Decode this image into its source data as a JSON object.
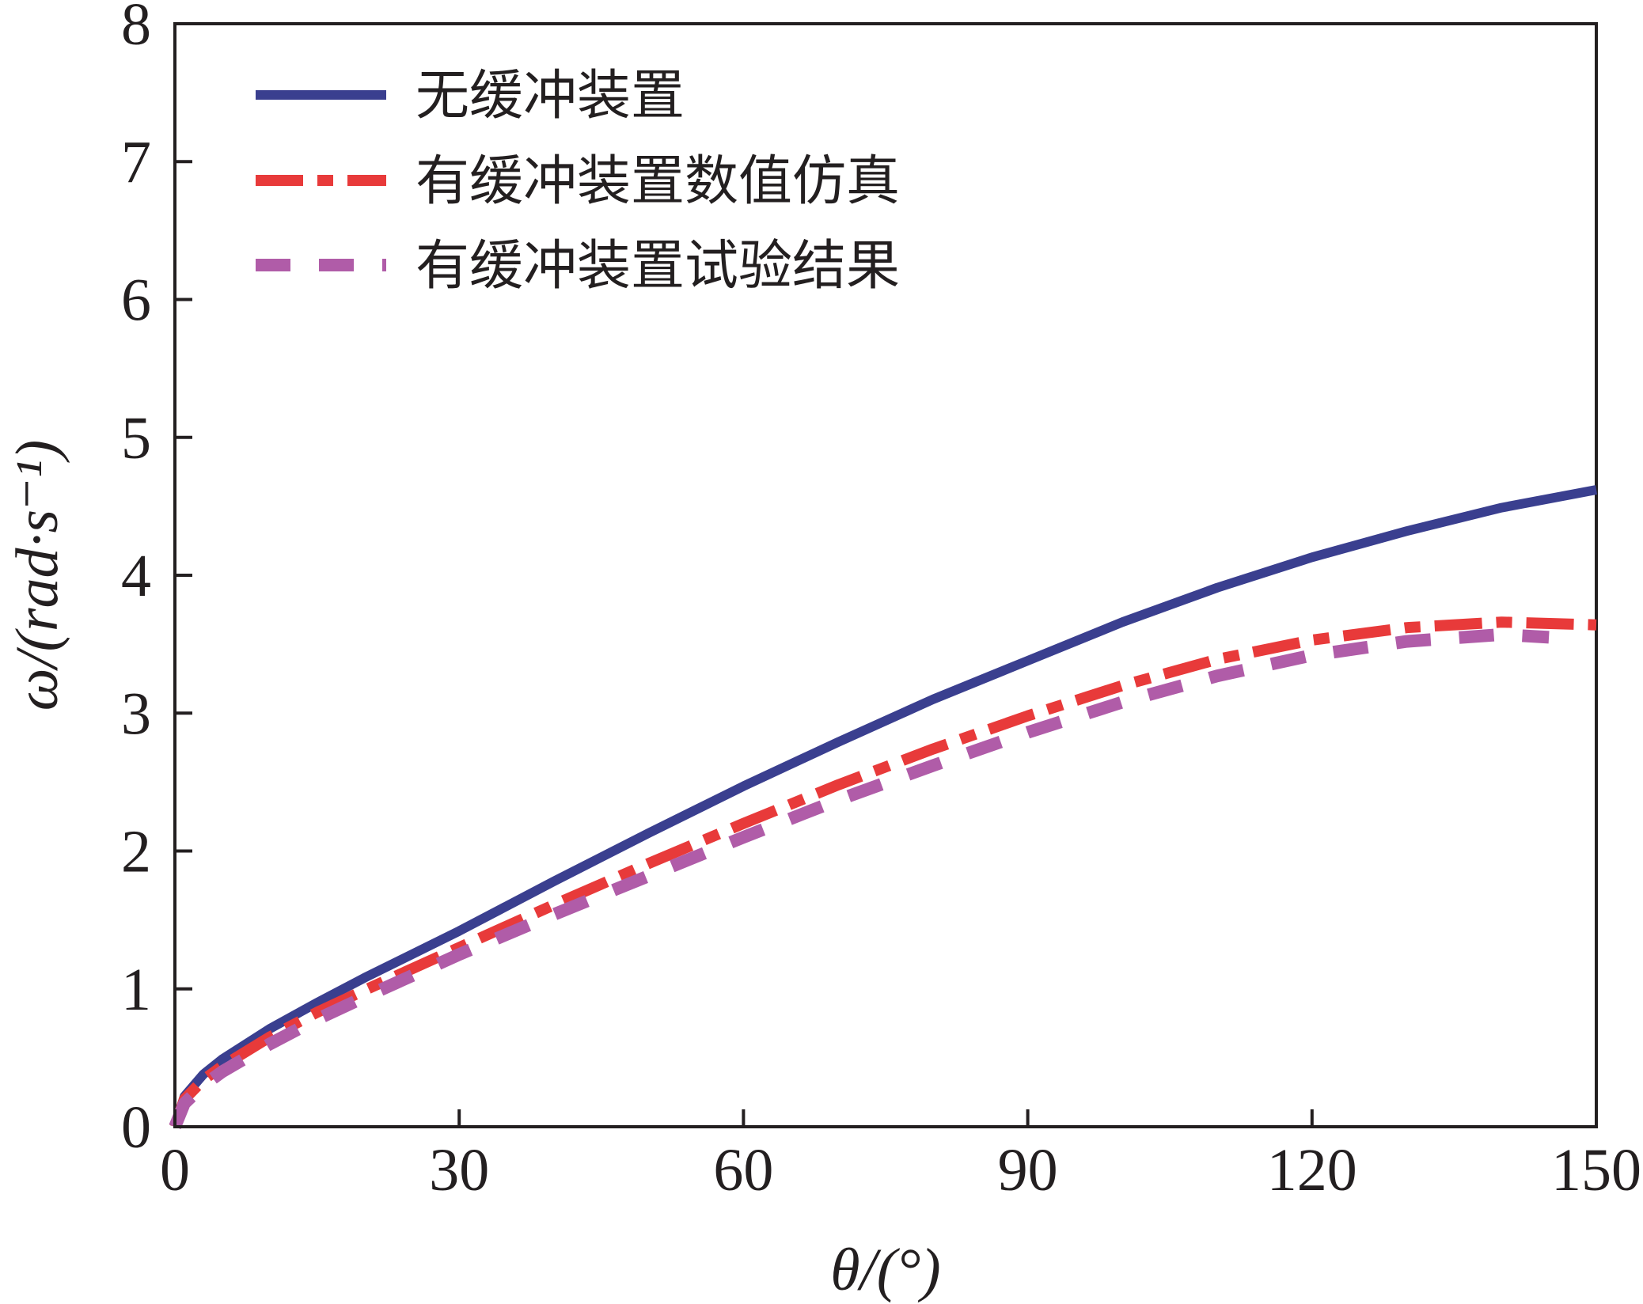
{
  "chart_data": {
    "type": "line",
    "xlabel": "θ/(°)",
    "ylabel": "ω/(rad·s⁻¹)",
    "xlim": [
      0,
      150
    ],
    "ylim": [
      0,
      8
    ],
    "xticks": [
      0,
      30,
      60,
      90,
      120,
      150
    ],
    "yticks": [
      0,
      1,
      2,
      3,
      4,
      5,
      6,
      7,
      8
    ],
    "grid": false,
    "legend_position": "top-left",
    "series": [
      {
        "name": "无缓冲装置",
        "color": "#3a3f8f",
        "line_style": "solid",
        "x": [
          0,
          1,
          3,
          5,
          10,
          15,
          20,
          30,
          40,
          50,
          60,
          70,
          80,
          90,
          100,
          110,
          120,
          130,
          140,
          150
        ],
        "y": [
          0,
          0.22,
          0.38,
          0.49,
          0.71,
          0.9,
          1.08,
          1.42,
          1.78,
          2.13,
          2.47,
          2.79,
          3.1,
          3.38,
          3.66,
          3.91,
          4.13,
          4.32,
          4.49,
          4.62
        ]
      },
      {
        "name": "有缓冲装置数值仿真",
        "color": "#e83a3a",
        "line_style": "dash-dot",
        "x": [
          0,
          1,
          3,
          5,
          10,
          15,
          20,
          30,
          40,
          50,
          60,
          70,
          80,
          90,
          100,
          110,
          120,
          130,
          140,
          150
        ],
        "y": [
          0,
          0.2,
          0.34,
          0.44,
          0.65,
          0.83,
          0.99,
          1.3,
          1.61,
          1.91,
          2.2,
          2.48,
          2.74,
          2.98,
          3.2,
          3.39,
          3.53,
          3.62,
          3.66,
          3.64
        ]
      },
      {
        "name": "有缓冲装置试验结果",
        "color": "#b05ca8",
        "line_style": "dashed",
        "x": [
          0,
          1,
          3,
          5,
          10,
          15,
          20,
          30,
          40,
          50,
          60,
          70,
          80,
          90,
          100,
          110,
          120,
          130,
          140,
          145
        ],
        "y": [
          0,
          0.17,
          0.3,
          0.4,
          0.6,
          0.78,
          0.94,
          1.25,
          1.54,
          1.82,
          2.1,
          2.37,
          2.62,
          2.86,
          3.08,
          3.27,
          3.42,
          3.52,
          3.57,
          3.55
        ]
      }
    ]
  }
}
